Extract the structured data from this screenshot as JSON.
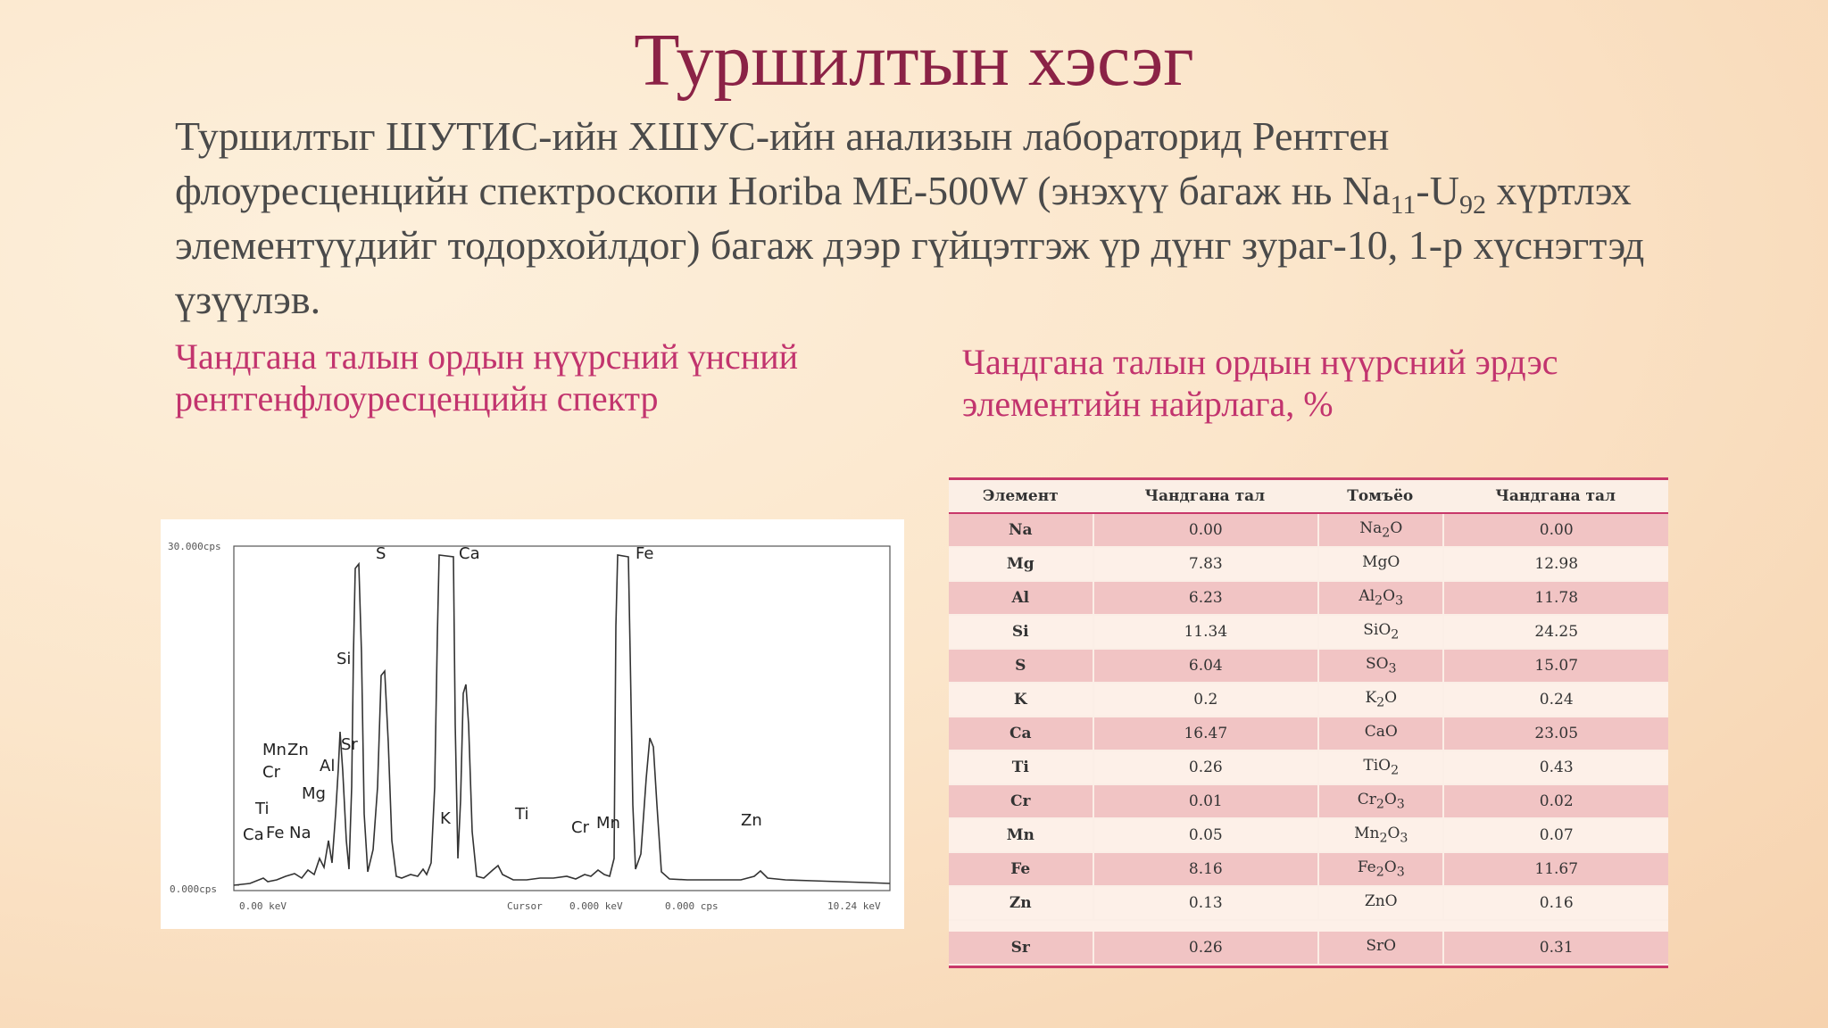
{
  "slide": {
    "title": "Туршилтын хэсэг",
    "intro": {
      "part1": "Туршилтыг ШУТИС-ийн ХШУС-ийн анализын лабораторид Рентген флоуресценцийн спектроскопи Horiba ME-500W (энэхүү багаж нь Na",
      "sub1": "11",
      "part2": "-U",
      "sub2": "92",
      "part3": " хүртлэх элементүүдийг тодорхойлдог) багаж дээр гүйцэтгэж үр дүнг зураг-10, 1-р хүснэгтэд үзүүлэв."
    },
    "caption_left": "Чандгана талын ордын нүүрсний үнсний рентгенфлоуресценцийн спектр",
    "caption_right": "Чандгана талын ордын нүүрсний эрдэс элементийн найрлага, %"
  },
  "spectrum": {
    "y_top_label": "30.000cps",
    "y_bottom_label": "0.000cps",
    "x_left_label": "0.00 keV",
    "cursor_label": "Cursor",
    "cursor_kev": "0.000 keV",
    "cursor_cps": "0.000 cps",
    "x_right_label": "10.24 keV",
    "peak_labels": [
      "S",
      "Ca",
      "Fe",
      "Si",
      "Sr",
      "Al",
      "Mg",
      "Mn",
      "Zn",
      "Cr",
      "Ti",
      "Ca",
      "Fe",
      "Na",
      "K",
      "Ti",
      "Cr",
      "Mn",
      "Zn"
    ]
  },
  "table": {
    "headers": [
      "Элемент",
      "Чандгана тал",
      "Томъёо",
      "Чандгана тал"
    ],
    "rows": [
      {
        "el": "Na",
        "v1": "0.00",
        "f1": "Na",
        "s1": "2",
        "f2": "O",
        "s2": "",
        "v2": "0.00"
      },
      {
        "el": "Mg",
        "v1": "7.83",
        "f1": "MgO",
        "s1": "",
        "f2": "",
        "s2": "",
        "v2": "12.98"
      },
      {
        "el": "Al",
        "v1": "6.23",
        "f1": "Al",
        "s1": "2",
        "f2": "O",
        "s2": "3",
        "v2": "11.78"
      },
      {
        "el": "Si",
        "v1": "11.34",
        "f1": "SiO",
        "s1": "2",
        "f2": "",
        "s2": "",
        "v2": "24.25"
      },
      {
        "el": "S",
        "v1": "6.04",
        "f1": "SO",
        "s1": "3",
        "f2": "",
        "s2": "",
        "v2": "15.07"
      },
      {
        "el": "K",
        "v1": "0.2",
        "f1": "K",
        "s1": "2",
        "f2": "O",
        "s2": "",
        "v2": "0.24"
      },
      {
        "el": "Ca",
        "v1": "16.47",
        "f1": "CaO",
        "s1": "",
        "f2": "",
        "s2": "",
        "v2": "23.05"
      },
      {
        "el": "Ti",
        "v1": "0.26",
        "f1": "TiO",
        "s1": "2",
        "f2": "",
        "s2": "",
        "v2": "0.43"
      },
      {
        "el": "Cr",
        "v1": "0.01",
        "f1": "Cr",
        "s1": "2",
        "f2": "O",
        "s2": "3",
        "v2": "0.02"
      },
      {
        "el": "Mn",
        "v1": "0.05",
        "f1": "Mn",
        "s1": "2",
        "f2": "O",
        "s2": "3",
        "v2": "0.07"
      },
      {
        "el": "Fe",
        "v1": "8.16",
        "f1": "Fe",
        "s1": "2",
        "f2": "O",
        "s2": "3",
        "v2": "11.67"
      },
      {
        "el": "Zn",
        "v1": "0.13",
        "f1": "ZnO",
        "s1": "",
        "f2": "",
        "s2": "",
        "v2": "0.16"
      },
      {
        "el": "Sr",
        "v1": "0.26",
        "f1": "SrO",
        "s1": "",
        "f2": "",
        "s2": "",
        "v2": "0.31"
      }
    ]
  }
}
